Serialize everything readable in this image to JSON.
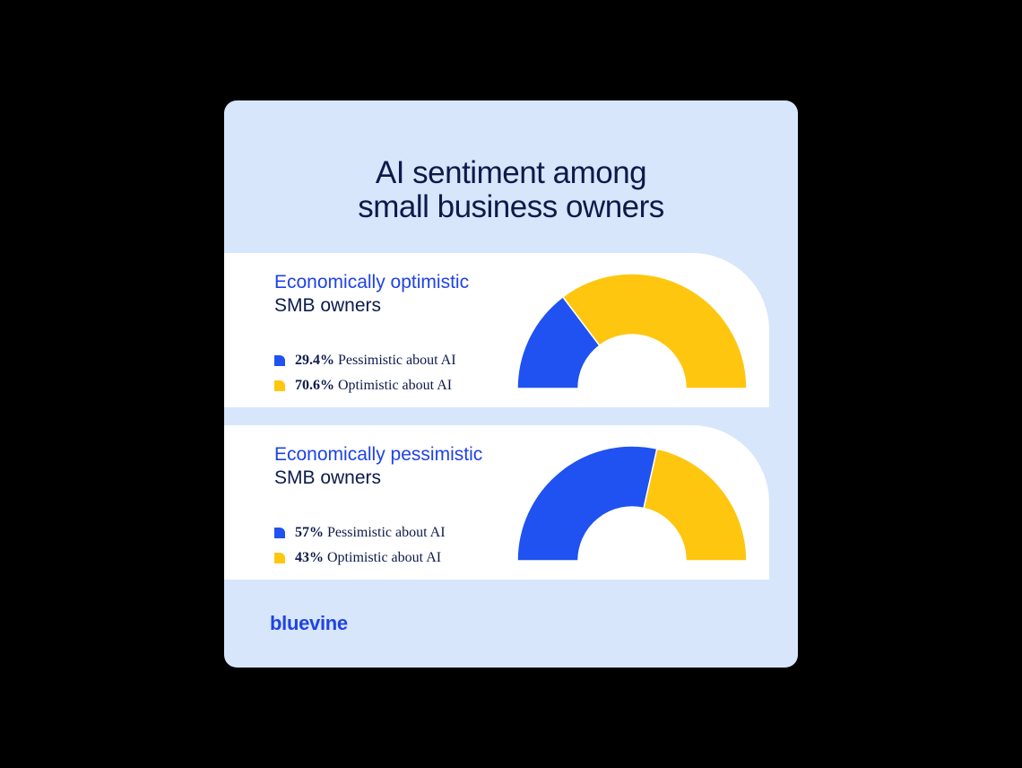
{
  "title": {
    "line1": "AI sentiment among",
    "line2": "small business owners"
  },
  "colors": {
    "pessimistic": "#1f52f0",
    "optimistic": "#ffc60f",
    "background": "#d8e6fc",
    "text": "#0d1a4a",
    "accent": "#1f43e6"
  },
  "brand": {
    "logo_text": "bluevine"
  },
  "chart_data": [
    {
      "type": "pie",
      "heading_accent": "Economically optimistic",
      "heading_main": "SMB owners",
      "slices": [
        {
          "value": 29.4,
          "value_label": "29.4%",
          "label": "Pessimistic about AI",
          "color": "#1f52f0"
        },
        {
          "value": 70.6,
          "value_label": "70.6%",
          "label": "Optimistic about AI",
          "color": "#ffc60f"
        }
      ]
    },
    {
      "type": "pie",
      "heading_accent": "Economically pessimistic",
      "heading_main": "SMB owners",
      "slices": [
        {
          "value": 57,
          "value_label": "57%",
          "label": "Pessimistic about AI",
          "color": "#1f52f0"
        },
        {
          "value": 43,
          "value_label": "43%",
          "label": "Optimistic about AI",
          "color": "#ffc60f"
        }
      ]
    }
  ]
}
